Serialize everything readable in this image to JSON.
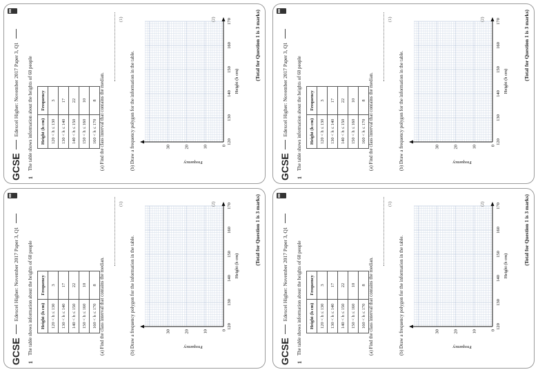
{
  "pages": [
    {
      "header": {
        "logo": "GCSE",
        "source": "Edexcel Higher: November 2017 Paper 3, Q1"
      },
      "question": {
        "number": "1",
        "intro": "The table shows information about the heights of 60 people",
        "table": {
          "headers": [
            "Height (h cm)",
            "Frequency"
          ],
          "rows": [
            [
              "120 < h ≤ 130",
              "3"
            ],
            [
              "130 < h ≤ 140",
              "17"
            ],
            [
              "140 < h ≤ 150",
              "22"
            ],
            [
              "150 < h ≤ 160",
              "10"
            ],
            [
              "160 < h ≤ 170",
              "8"
            ]
          ]
        },
        "part_a": "(a) Find the class interval that contains the median.",
        "part_a_marks": "(1)",
        "part_b": "(b) Draw a frequency polygon for the information in the table.",
        "part_b_marks": "(2)",
        "graph": {
          "y_label": "Frequency",
          "x_label": "Height (h cm)",
          "y_ticks": [
            "0",
            "10",
            "20",
            "30"
          ],
          "x_ticks": [
            "120",
            "130",
            "140",
            "150",
            "160",
            "170"
          ]
        },
        "total": "(Total for Question 1 is 3 marks)"
      }
    },
    {
      "header": {
        "logo": "GCSE",
        "source": "Edexcel Higher: November 2017 Paper 3, Q1"
      },
      "question": {
        "number": "1",
        "intro": "The table shows information about the heights of 60 people",
        "table": {
          "headers": [
            "Height (h cm)",
            "Frequency"
          ],
          "rows": [
            [
              "120 < h ≤ 130",
              "3"
            ],
            [
              "130 < h ≤ 140",
              "17"
            ],
            [
              "140 < h ≤ 150",
              "22"
            ],
            [
              "150 < h ≤ 160",
              "10"
            ],
            [
              "160 < h ≤ 170",
              "8"
            ]
          ]
        },
        "part_a": "(a) Find the class interval that contains the median.",
        "part_a_marks": "(1)",
        "part_b": "(b) Draw a frequency polygon for the information in the table.",
        "part_b_marks": "(2)",
        "graph": {
          "y_label": "Frequency",
          "x_label": "Height (h cm)",
          "y_ticks": [
            "0",
            "10",
            "20",
            "30"
          ],
          "x_ticks": [
            "120",
            "130",
            "140",
            "150",
            "160",
            "170"
          ]
        },
        "total": "(Total for Question 1 is 3 marks)"
      }
    },
    {
      "header": {
        "logo": "GCSE",
        "source": "Edexcel Higher: November 2017 Paper 3, Q1"
      },
      "question": {
        "number": "1",
        "intro": "The table shows information about the heights of 60 people",
        "table": {
          "headers": [
            "Height (h cm)",
            "Frequency"
          ],
          "rows": [
            [
              "120 < h ≤ 130",
              "3"
            ],
            [
              "130 < h ≤ 140",
              "17"
            ],
            [
              "140 < h ≤ 150",
              "22"
            ],
            [
              "150 < h ≤ 160",
              "10"
            ],
            [
              "160 < h ≤ 170",
              "8"
            ]
          ]
        },
        "part_a": "(a) Find the class interval that contains the median.",
        "part_a_marks": "(1)",
        "part_b": "(b) Draw a frequency polygon for the information in the table.",
        "part_b_marks": "(2)",
        "graph": {
          "y_label": "Frequency",
          "x_label": "Height (h cm)",
          "y_ticks": [
            "0",
            "10",
            "20",
            "30"
          ],
          "x_ticks": [
            "120",
            "130",
            "140",
            "150",
            "160",
            "170"
          ]
        },
        "total": "(Total for Question 1 is 3 marks)"
      }
    },
    {
      "header": {
        "logo": "GCSE",
        "source": "Edexcel Higher: November 2017 Paper 3, Q1"
      },
      "question": {
        "number": "1",
        "intro": "The table shows information about the heights of 60 people",
        "table": {
          "headers": [
            "Height (h cm)",
            "Frequency"
          ],
          "rows": [
            [
              "120 < h ≤ 130",
              "3"
            ],
            [
              "130 < h ≤ 140",
              "17"
            ],
            [
              "140 < h ≤ 150",
              "22"
            ],
            [
              "150 < h ≤ 160",
              "10"
            ],
            [
              "160 < h ≤ 170",
              "8"
            ]
          ]
        },
        "part_a": "(a) Find the class interval that contains the median.",
        "part_a_marks": "(1)",
        "part_b": "(b) Draw a frequency polygon for the information in the table.",
        "part_b_marks": "(2)",
        "graph": {
          "y_label": "Frequency",
          "x_label": "Height (h cm)",
          "y_ticks": [
            "0",
            "10",
            "20",
            "30"
          ],
          "x_ticks": [
            "120",
            "130",
            "140",
            "150",
            "160",
            "170"
          ]
        },
        "total": "(Total for Question 1 is 3 marks)"
      }
    }
  ]
}
